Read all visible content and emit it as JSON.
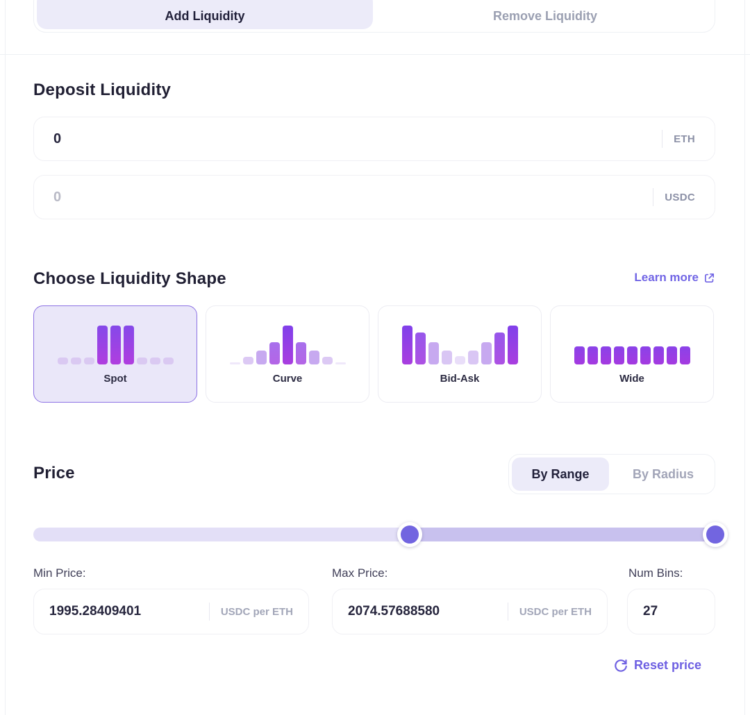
{
  "tabs": {
    "items": [
      {
        "label": "Add Liquidity",
        "selected": true
      },
      {
        "label": "Remove Liquidity",
        "selected": false
      }
    ]
  },
  "deposit": {
    "title": "Deposit Liquidity",
    "token_inputs": [
      {
        "value": "0",
        "token": "ETH",
        "is_placeholder": false
      },
      {
        "value": "0",
        "token": "USDC",
        "is_placeholder": true
      }
    ]
  },
  "shapes": {
    "title": "Choose Liquidity Shape",
    "learn_more_label": "Learn more",
    "options": [
      {
        "label": "Spot",
        "selected": true,
        "bars": [
          [
            10,
            "#dac9f2",
            "#dac9f2"
          ],
          [
            10,
            "#dac9f2",
            "#dac9f2"
          ],
          [
            10,
            "#dac9f2",
            "#dac9f2"
          ],
          [
            56,
            "#8549e9",
            "#b03ddf"
          ],
          [
            56,
            "#8549e9",
            "#b03ddf"
          ],
          [
            56,
            "#8549e9",
            "#b03ddf"
          ],
          [
            10,
            "#dac9f2",
            "#dac9f2"
          ],
          [
            10,
            "#dac9f2",
            "#dac9f2"
          ],
          [
            10,
            "#dac9f2",
            "#dac9f2"
          ]
        ]
      },
      {
        "label": "Curve",
        "selected": false,
        "bars": [
          [
            3,
            "#efe8fa",
            "#efe8fa"
          ],
          [
            11,
            "#dcc9f4",
            "#dcc9f4"
          ],
          [
            20,
            "#c7a9f0",
            "#c7a9f0"
          ],
          [
            32,
            "#a770ec",
            "#b465e6"
          ],
          [
            56,
            "#8140ea",
            "#a93edf"
          ],
          [
            32,
            "#a770ec",
            "#b465e6"
          ],
          [
            20,
            "#c7a9f0",
            "#c7a9f0"
          ],
          [
            11,
            "#dcc9f4",
            "#dcc9f4"
          ],
          [
            3,
            "#efe8fa",
            "#efe8fa"
          ]
        ]
      },
      {
        "label": "Bid-Ask",
        "selected": false,
        "bars": [
          [
            56,
            "#8140ea",
            "#a93edf"
          ],
          [
            46,
            "#9757eb",
            "#ad51e3"
          ],
          [
            32,
            "#c7a9f0",
            "#c7a9f0"
          ],
          [
            20,
            "#d9c6f4",
            "#d9c6f4"
          ],
          [
            12,
            "#e9def9",
            "#e9def9"
          ],
          [
            20,
            "#d9c6f4",
            "#d9c6f4"
          ],
          [
            32,
            "#c7a9f0",
            "#c7a9f0"
          ],
          [
            46,
            "#9757eb",
            "#ad51e3"
          ],
          [
            56,
            "#8140ea",
            "#a93edf"
          ]
        ]
      },
      {
        "label": "Wide",
        "selected": false,
        "bars": [
          [
            26,
            "#8a42e8",
            "#a43ae0"
          ],
          [
            26,
            "#8a42e8",
            "#a43ae0"
          ],
          [
            26,
            "#8a42e8",
            "#a43ae0"
          ],
          [
            26,
            "#8a42e8",
            "#a43ae0"
          ],
          [
            26,
            "#8a42e8",
            "#a43ae0"
          ],
          [
            26,
            "#8a42e8",
            "#a43ae0"
          ],
          [
            26,
            "#8a42e8",
            "#a43ae0"
          ],
          [
            26,
            "#8a42e8",
            "#a43ae0"
          ],
          [
            26,
            "#8a42e8",
            "#a43ae0"
          ]
        ]
      }
    ]
  },
  "price": {
    "title": "Price",
    "modes": [
      {
        "label": "By Range",
        "selected": true
      },
      {
        "label": "By Radius",
        "selected": false
      }
    ],
    "slider": {
      "handle1_pct": 54.5,
      "handle2_pct": 98.8
    },
    "fields": [
      {
        "label": "Min Price:",
        "value": "1995.28409401",
        "unit": "USDC per ETH"
      },
      {
        "label": "Max Price:",
        "value": "2074.57688580",
        "unit": "USDC per ETH"
      },
      {
        "label": "Num Bins:",
        "value": "27",
        "unit": ""
      }
    ],
    "reset_label": "Reset price"
  },
  "colors": {
    "accent": "#6f61e2",
    "tab_pill_bg": "#ecebf9",
    "selected_card_border": "#8d72e4",
    "selected_card_bg": "#eae7f9",
    "slider_track": "#e3dff7",
    "slider_range": "#c8c1ee",
    "slider_handle": "#7265e0"
  }
}
